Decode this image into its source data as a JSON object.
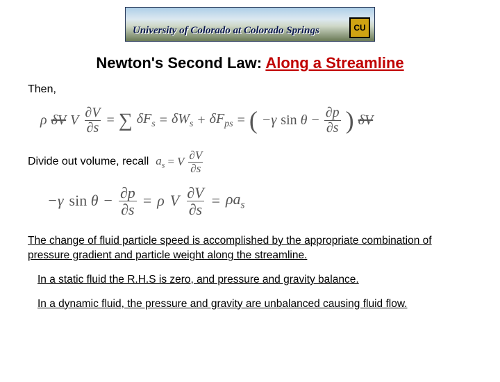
{
  "banner": {
    "text": "University of Colorado at Colorado Springs",
    "logo": "CU"
  },
  "title": {
    "part1": "Newton's Second Law: ",
    "part2": "Along a Streamline"
  },
  "text": {
    "then": "Then,",
    "divide": "Divide out volume, recall",
    "para1": "The change of fluid particle speed is accomplished by the appropriate combination of pressure gradient and particle weight along the streamline.",
    "para2": "In a static fluid the R.H.S is zero, and pressure and gravity balance.",
    "para3": "In a dynamic fluid, the pressure and gravity are unbalanced causing fluid flow."
  },
  "equations": {
    "eq1": {
      "rho": "ρ",
      "dV": "δV",
      "V": "V",
      "partialV": "∂V",
      "partials": "∂s",
      "eq": "=",
      "sum": "∑",
      "dFs": "δF",
      "sub_s": "s",
      "dWs": "δW",
      "plus": "+",
      "dFps": "δF",
      "sub_ps": "ps",
      "lparen": "(",
      "neg_gamma": "−γ",
      "sin": "sin",
      "theta": "θ",
      "minus": "−",
      "partialp": "∂p",
      "rparen": ")",
      "dV2": "δV"
    },
    "recall": {
      "as": "a",
      "sub_s": "s",
      "eq": "=",
      "V": "V",
      "partialV": "∂V",
      "partials": "∂s"
    },
    "eq2": {
      "neg_gamma": "−γ",
      "sin": "sin",
      "theta": "θ",
      "minus": "−",
      "partialp": "∂p",
      "partials": "∂s",
      "eq": "=",
      "rho": "ρ",
      "V": "V",
      "partialV": "∂V",
      "rho2": "ρ",
      "as": "a",
      "sub_s": "s"
    }
  },
  "colors": {
    "title_red": "#c00000",
    "eq_gray": "#555555",
    "text": "#000000",
    "bg": "#ffffff"
  },
  "fonts": {
    "body": "Arial",
    "math": "Times New Roman",
    "title_size": 22,
    "body_size": 16,
    "eq_size": 20
  }
}
